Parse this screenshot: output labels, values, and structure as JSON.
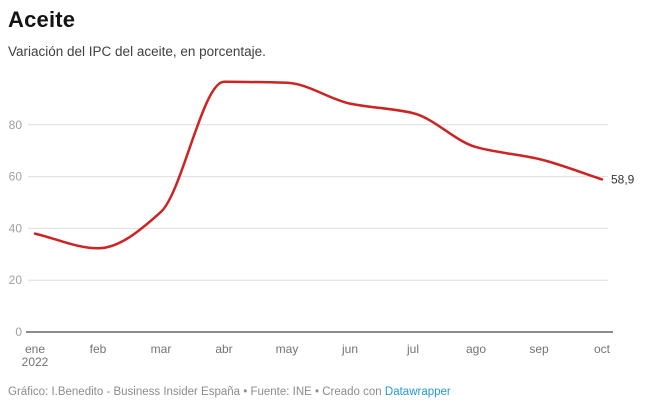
{
  "header": {
    "title": "Aceite",
    "subtitle": "Variación del IPC del aceite, en porcentaje."
  },
  "chart_data": {
    "type": "line",
    "categories": [
      "ene",
      "feb",
      "mar",
      "abr",
      "may",
      "jun",
      "jul",
      "ago",
      "sep",
      "oct"
    ],
    "first_tick_year": "2022",
    "values": [
      38,
      32.3,
      46.4,
      96.6,
      96.2,
      88.2,
      84.5,
      71.4,
      66.8,
      58.9
    ],
    "yticks": [
      0,
      20,
      40,
      60,
      80
    ],
    "ylim": [
      0,
      100
    ],
    "grid": true,
    "legend": "none",
    "end_label": "58,9"
  },
  "colors": {
    "line": "#cd2323",
    "link": "#1f9ad6",
    "grid": "#dedede",
    "axis": "#1a1a1a",
    "y_tick": "#a0a0a0",
    "x_tick": "#737373",
    "end_label": "#333333"
  },
  "footer": {
    "credit": "Gráfico: I.Benedito - Business Insider España • Fuente: INE • Creado con",
    "link_label": "Datawrapper"
  }
}
